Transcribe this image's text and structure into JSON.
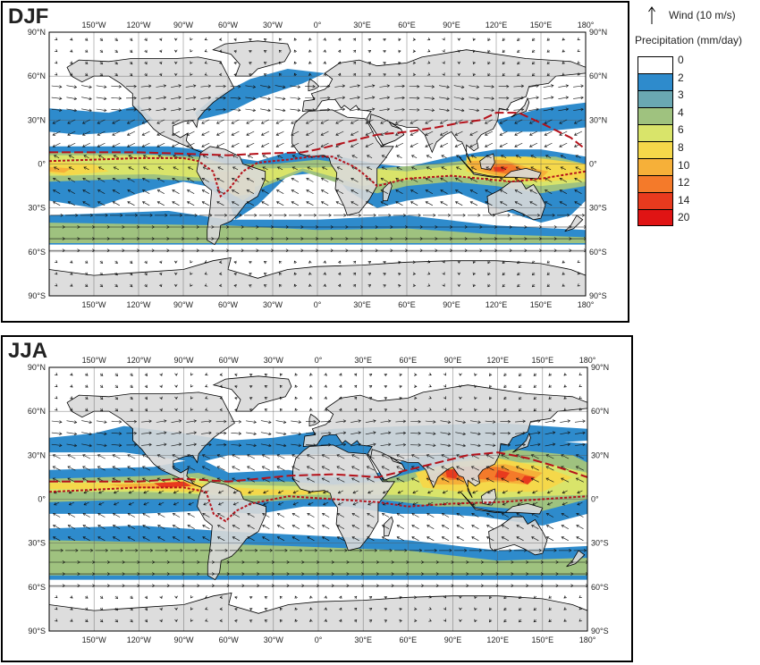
{
  "panels": [
    {
      "id": "djf",
      "label": "DJF"
    },
    {
      "id": "jja",
      "label": "JJA"
    }
  ],
  "lon_ticks": [
    "150°W",
    "120°W",
    "90°W",
    "60°W",
    "30°W",
    "0°",
    "30°E",
    "60°E",
    "90°E",
    "120°E",
    "150°E",
    "180°"
  ],
  "lat_ticks": [
    "90°N",
    "60°N",
    "30°N",
    "0°",
    "30°S",
    "60°S",
    "90°S"
  ],
  "legend": {
    "wind_label": "Wind (10 m/s)",
    "precip_title": "Precipitation (mm/day)",
    "levels": [
      "0",
      "2",
      "3",
      "4",
      "6",
      "8",
      "10",
      "12",
      "14",
      "20"
    ],
    "colors": [
      "#ffffff",
      "#2e8bcc",
      "#6aa8b2",
      "#9fc27f",
      "#d9e46a",
      "#f5d84a",
      "#f6b039",
      "#f47a2a",
      "#e83a1e",
      "#e01414"
    ]
  },
  "colors": {
    "land": "#d9d9d9",
    "itcz_line": "#b5121b"
  }
}
